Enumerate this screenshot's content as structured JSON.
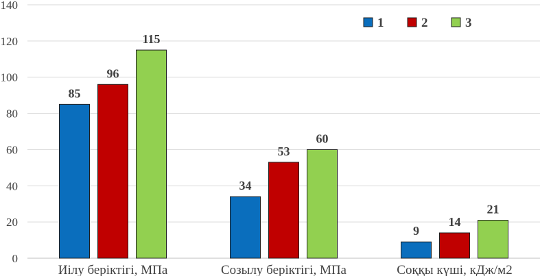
{
  "chart_data": {
    "type": "bar",
    "categories": [
      "Иілу беріктігі, МПа",
      "Созылу беріктігі, МПа",
      "Соққы күші, кДж/м2"
    ],
    "series": [
      {
        "name": "1",
        "color": "#0A6EBD",
        "values": [
          85,
          34,
          9
        ]
      },
      {
        "name": "2",
        "color": "#C00000",
        "values": [
          96,
          53,
          14
        ]
      },
      {
        "name": "3",
        "color": "#92D050",
        "values": [
          115,
          60,
          21
        ]
      }
    ],
    "ylim": [
      0,
      140
    ],
    "yticks": [
      0,
      20,
      40,
      60,
      80,
      100,
      120,
      140
    ],
    "grid": true,
    "legend_position": "top-right",
    "data_labels": true
  }
}
